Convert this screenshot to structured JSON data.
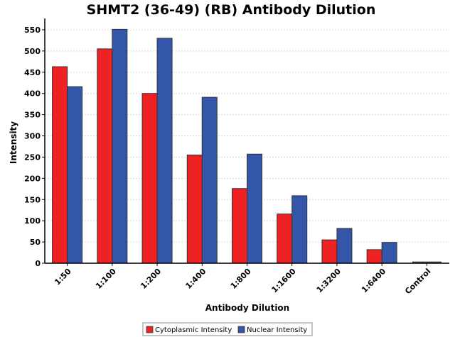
{
  "chart_data": {
    "type": "bar",
    "title": "SHMT2 (36-49) (RB) Antibody Dilution",
    "xlabel": "Antibody Dilution",
    "ylabel": "Intensity",
    "categories": [
      "1:50",
      "1:100",
      "1:200",
      "1:400",
      "1:800",
      "1:1600",
      "1:3200",
      "1:6400",
      "Control"
    ],
    "series": [
      {
        "name": "Cytoplasmic Intensity",
        "color": "#ee2222",
        "values": [
          463,
          505,
          400,
          255,
          176,
          116,
          55,
          32,
          3
        ]
      },
      {
        "name": "Nuclear Intensity",
        "color": "#3355aa",
        "values": [
          416,
          551,
          530,
          391,
          257,
          159,
          82,
          49,
          3
        ]
      }
    ],
    "ylim": [
      0,
      570
    ],
    "yticks": [
      0,
      50,
      100,
      150,
      200,
      250,
      300,
      350,
      400,
      450,
      500,
      550
    ],
    "grid": true,
    "legend_position": "bottom"
  }
}
